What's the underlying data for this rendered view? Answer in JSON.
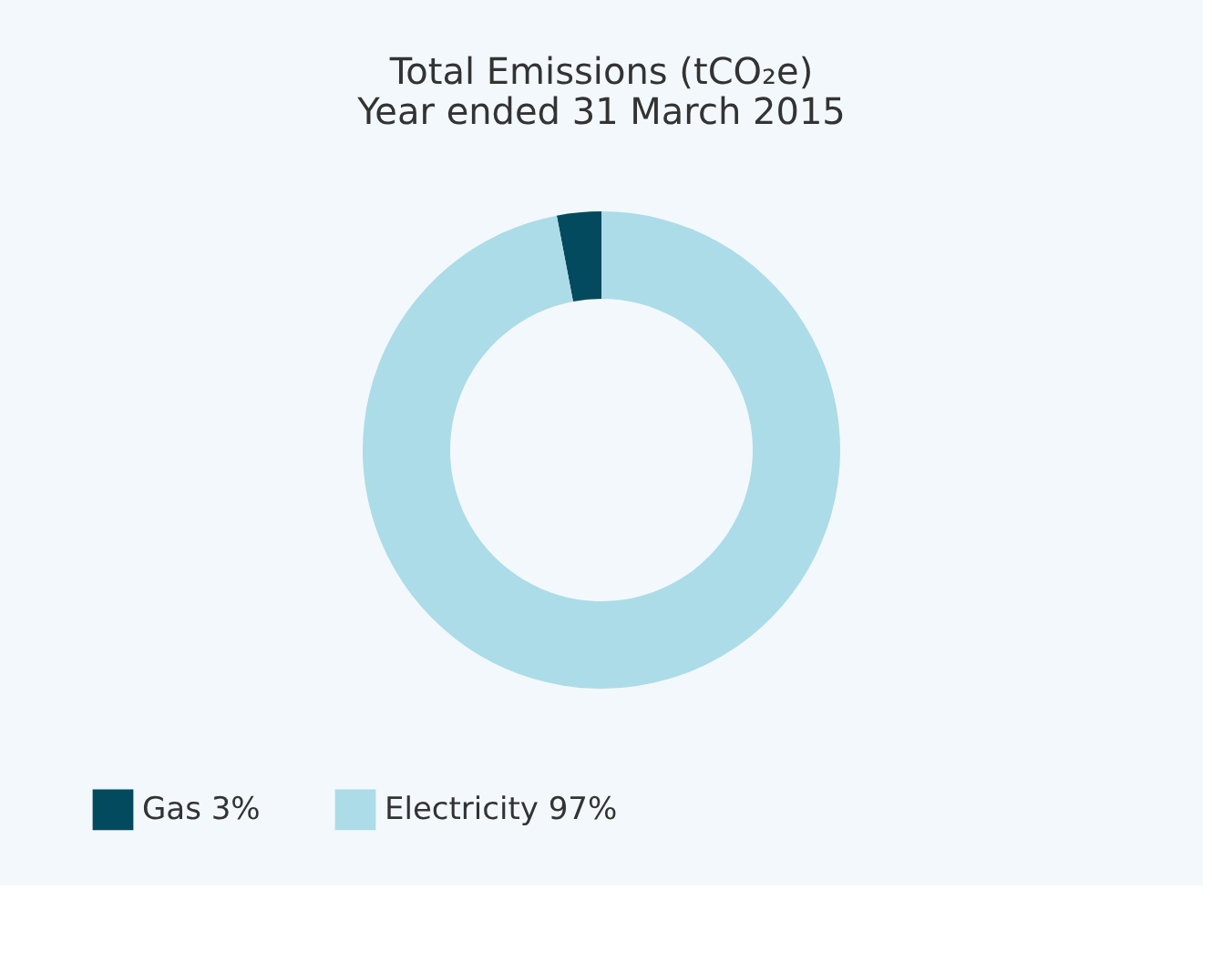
{
  "chart_data": {
    "type": "donut",
    "title": [
      "Total Emissions (tCO₂e)",
      "Year ended 31 March 2015"
    ],
    "categories": [
      "Gas 3%",
      "Electricity 97%"
    ],
    "values": [
      3,
      97
    ],
    "colors": [
      "#034a5e",
      "#acdce8"
    ],
    "legend": "bottom"
  }
}
